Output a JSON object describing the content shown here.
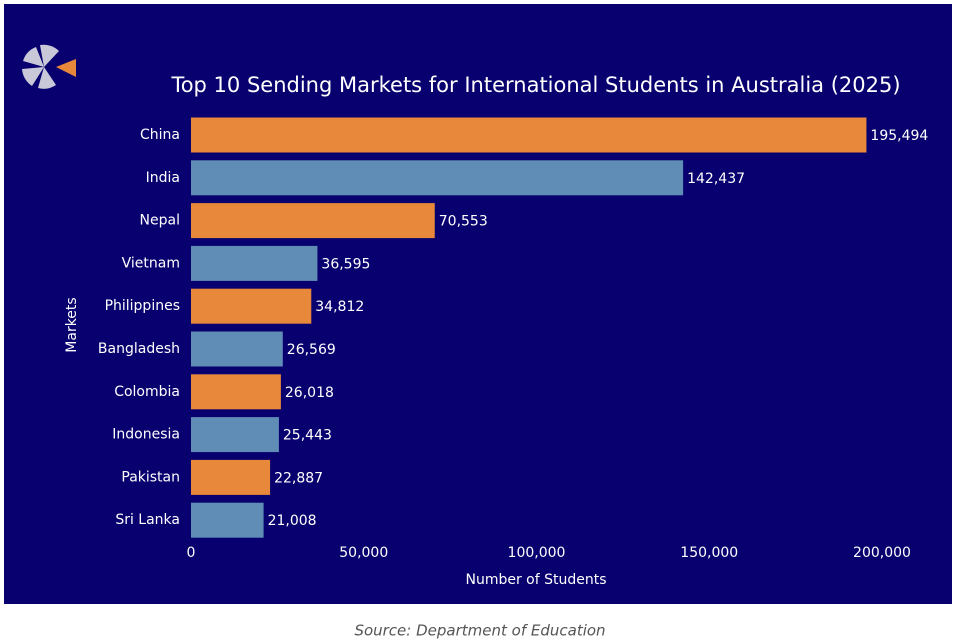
{
  "chart_data": {
    "type": "bar",
    "orientation": "horizontal",
    "title": "Top 10 Sending Markets for International Students in Australia (2025)",
    "xlabel": "Number of Students",
    "ylabel": "Markets",
    "categories": [
      "China",
      "India",
      "Nepal",
      "Vietnam",
      "Philippines",
      "Bangladesh",
      "Colombia",
      "Indonesia",
      "Pakistan",
      "Sri Lanka"
    ],
    "values": [
      195494,
      142437,
      70553,
      36595,
      34812,
      26569,
      26018,
      25443,
      22887,
      21008
    ],
    "value_labels": [
      "195,494",
      "142,437",
      "70,553",
      "36,595",
      "34,812",
      "26,569",
      "26,018",
      "25,443",
      "22,887",
      "21,008"
    ],
    "colors": [
      "#e8883a",
      "#5f8db5",
      "#e8883a",
      "#5f8db5",
      "#e8883a",
      "#5f8db5",
      "#e8883a",
      "#5f8db5",
      "#e8883a",
      "#5f8db5"
    ],
    "xlim": [
      0,
      200000
    ],
    "xticks": [
      0,
      {
        "value": 50000,
        "label": "50,000"
      },
      {
        "value": 100000,
        "label": "100,000"
      },
      {
        "value": 150000,
        "label": "150,000"
      },
      {
        "value": 200000,
        "label": "200,000"
      }
    ],
    "grid": false,
    "source": "Source: Department of Education"
  }
}
